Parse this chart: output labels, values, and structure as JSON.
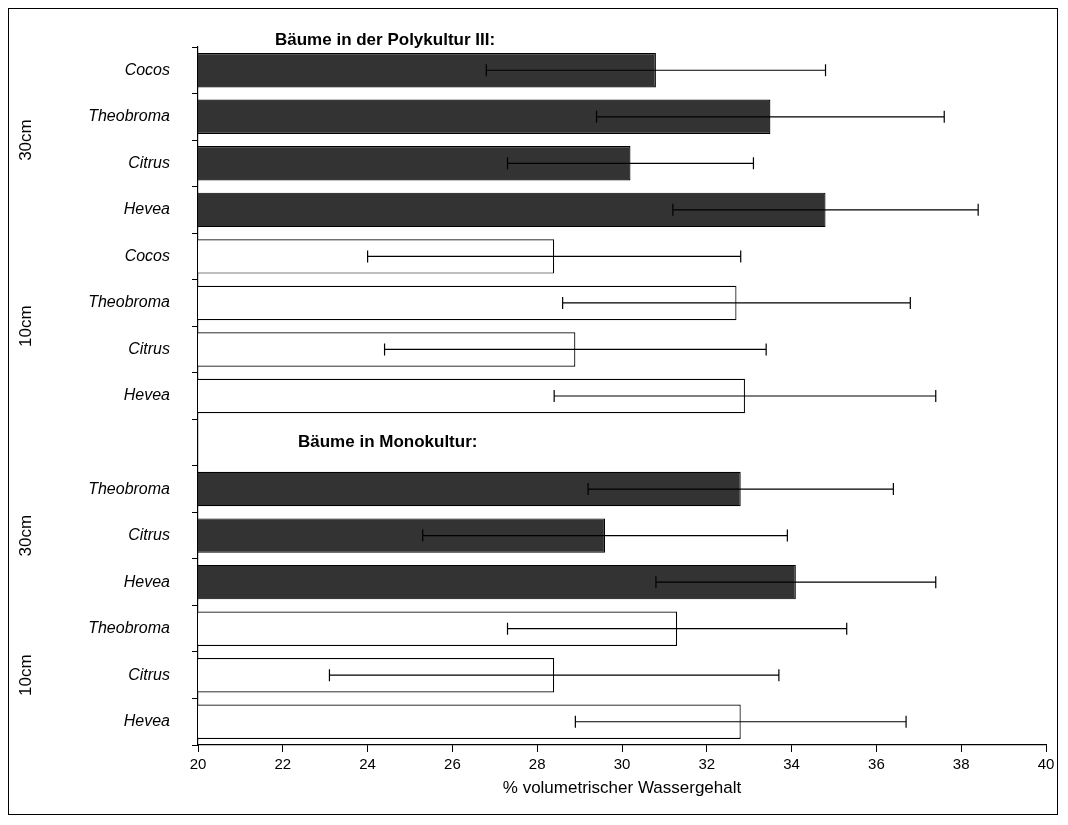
{
  "chart_data": {
    "type": "bar",
    "orientation": "horizontal",
    "title": "Bäume in der Polykultur III:",
    "xlabel": "% volumetrischer Wassergehalt",
    "categories": [
      "Cocos",
      "Theobroma",
      "Citrus",
      "Hevea",
      "Cocos",
      "Theobroma",
      "Citrus",
      "Hevea",
      null,
      "Theobroma",
      "Citrus",
      "Hevea",
      "Theobroma",
      "Citrus",
      "Hevea"
    ],
    "values": [
      30.8,
      33.5,
      30.2,
      34.8,
      28.4,
      32.7,
      28.9,
      32.9,
      null,
      32.8,
      29.6,
      34.1,
      31.3,
      28.4,
      32.8
    ],
    "errors": [
      4.0,
      4.1,
      2.9,
      3.6,
      4.4,
      4.1,
      4.5,
      4.5,
      null,
      3.6,
      4.3,
      3.3,
      4.0,
      5.3,
      3.9
    ],
    "colors": [
      "#333333",
      "#333333",
      "#333333",
      "#333333",
      "#ffffff",
      "#ffffff",
      "#ffffff",
      "#ffffff",
      null,
      "#333333",
      "#333333",
      "#333333",
      "#ffffff",
      "#ffffff",
      "#ffffff"
    ],
    "xlim": [
      20,
      40
    ],
    "xticks": [
      20,
      22,
      24,
      26,
      28,
      30,
      32,
      34,
      36,
      38,
      40
    ],
    "annotations": [
      "30cm",
      "10cm",
      "Bäume in Monokultur:",
      "30cm",
      "10cm"
    ],
    "legend": false,
    "grid": false
  }
}
